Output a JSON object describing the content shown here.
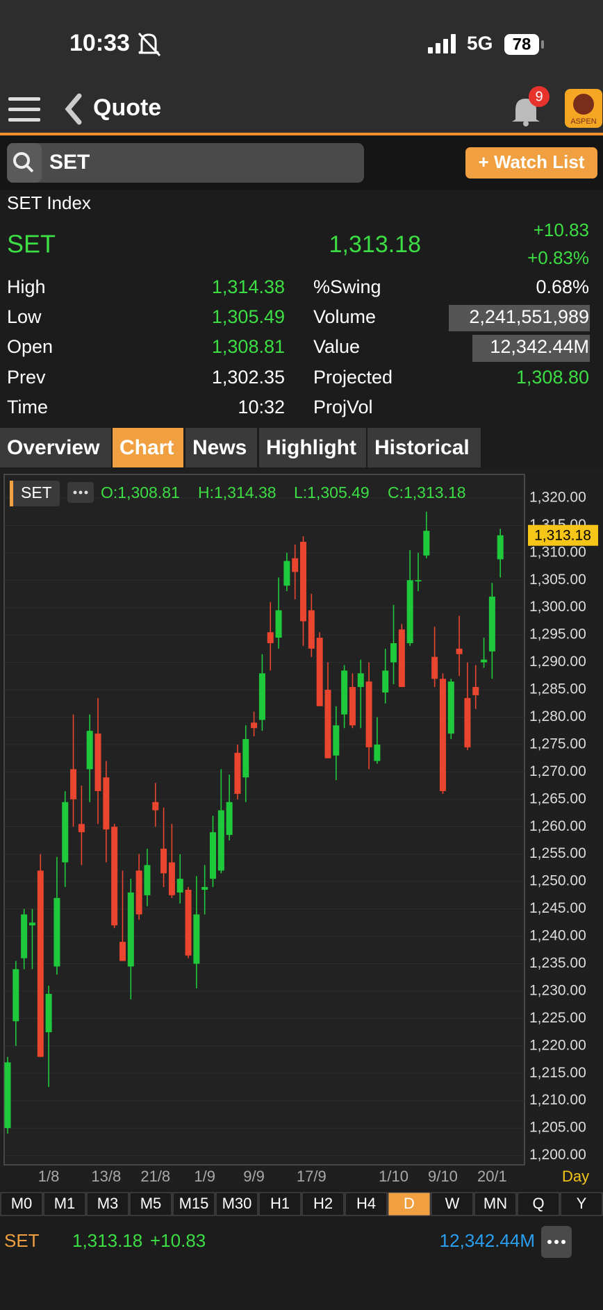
{
  "status_bar": {
    "time": "10:33",
    "network": "5G",
    "battery": "78"
  },
  "header": {
    "title": "Quote",
    "badge": "9",
    "logo": "ASPEN"
  },
  "search": {
    "query": "SET",
    "button": "+ Watch List"
  },
  "quote": {
    "name": "SET Index",
    "symbol": "SET",
    "price": "1,313.18",
    "change": "+10.83",
    "change_pct": "+0.83%",
    "stats": [
      [
        "High",
        "1,314.38",
        "%Swing",
        "0.68%"
      ],
      [
        "Low",
        "1,305.49",
        "Volume",
        "2,241,551,989"
      ],
      [
        "Open",
        "1,308.81",
        "Value",
        "12,342.44M"
      ],
      [
        "Prev",
        "1,302.35",
        "Projected",
        "1,308.80"
      ],
      [
        "Time",
        "10:32",
        "ProjVol"
      ]
    ]
  },
  "tabs": [
    {
      "label": "Overview"
    },
    {
      "label": "Chart",
      "active": true
    },
    {
      "label": "News"
    },
    {
      "label": "Highlight"
    },
    {
      "label": "Historical"
    }
  ],
  "chart_data": {
    "type": "candlestick",
    "legend": {
      "symbol": "SET",
      "ohlc": [
        "O:1,308.81",
        "H:1,314.38",
        "L:1,305.49",
        "C:1,313.18"
      ]
    },
    "categories": [
      null,
      null,
      null,
      null,
      null,
      "1/8",
      null,
      null,
      null,
      null,
      null,
      null,
      "13/8",
      null,
      null,
      null,
      null,
      null,
      "21/8",
      null,
      null,
      null,
      null,
      null,
      "1/9",
      null,
      null,
      null,
      null,
      null,
      "9/9",
      null,
      null,
      null,
      null,
      null,
      null,
      "17/9",
      null,
      null,
      null,
      null,
      null,
      null,
      null,
      null,
      null,
      "1/10",
      null,
      null,
      null,
      null,
      null,
      "9/10",
      null,
      null,
      null,
      null,
      null,
      "20/1",
      null
    ],
    "open": [
      1205,
      1224.5,
      1236,
      1242,
      1252,
      1222.5,
      1234.5,
      1253.5,
      1270.5,
      1260.5,
      1270.5,
      1277,
      1269,
      1260,
      1239,
      1234.5,
      1252,
      1247.5,
      1264.5,
      1256,
      1253.5,
      1248,
      1248.5,
      1235,
      1248.5,
      1250.5,
      1252,
      1258.5,
      1273.5,
      1269,
      1279,
      1279.5,
      1295.5,
      1294.5,
      1304,
      1309,
      1312,
      1299.5,
      1294.5,
      1285,
      1273,
      1280.5,
      1285.5,
      1285.5,
      1286.5,
      1272,
      1284.5,
      1290,
      1296,
      1293.5,
      1305,
      1309.5,
      1291,
      1287,
      1277,
      1292.5,
      1283.5,
      1285.5,
      1290,
      1292,
      1308.81
    ],
    "high": [
      1218,
      1235.5,
      1245,
      1245,
      1255,
      1231,
      1254.5,
      1266.5,
      1280.5,
      1267.5,
      1280.5,
      1283.5,
      1272,
      1260.5,
      1252,
      1250.5,
      1255,
      1256,
      1268,
      1263.5,
      1260.5,
      1255,
      1249,
      1251,
      1253,
      1262,
      1270.5,
      1269.5,
      1275,
      1278.5,
      1281,
      1291.5,
      1301,
      1305.5,
      1310,
      1311.5,
      1313,
      1302.5,
      1295.5,
      1290,
      1282,
      1289.5,
      1288,
      1290.5,
      1290,
      1280,
      1292.5,
      1300.5,
      1297,
      1310.5,
      1310,
      1317.5,
      1296.5,
      1288,
      1287,
      1298.5,
      1290,
      1289.5,
      1294.5,
      1304.5,
      1314.38
    ],
    "low": [
      1204,
      1220,
      1234,
      1234,
      1218,
      1212.5,
      1233,
      1249,
      1260,
      1253,
      1264.5,
      1260.5,
      1253.5,
      1241.5,
      1235.5,
      1228.5,
      1243,
      1245.5,
      1260,
      1249,
      1247,
      1246,
      1236,
      1230.5,
      1244,
      1249,
      1251.5,
      1257.5,
      1265,
      1264.5,
      1276.5,
      1277.5,
      1288.5,
      1292.5,
      1303,
      1301.5,
      1293,
      1291,
      1282,
      1272.5,
      1268.5,
      1278,
      1278,
      1278,
      1270.5,
      1271.5,
      1282.5,
      1286,
      1285.5,
      1293,
      1303,
      1309,
      1285.5,
      1266,
      1276,
      1287.5,
      1274,
      1281.5,
      1289,
      1287,
      1305.49
    ],
    "close": [
      1217,
      1234,
      1244,
      1242.5,
      1218,
      1229.5,
      1247,
      1264.5,
      1265,
      1259,
      1277.5,
      1266.5,
      1259.5,
      1242,
      1235.5,
      1248,
      1244,
      1253,
      1263,
      1251.5,
      1247.5,
      1250.5,
      1236.5,
      1244,
      1249,
      1259,
      1263,
      1264.5,
      1266,
      1276,
      1278,
      1288,
      1293.5,
      1299.5,
      1308.5,
      1306.5,
      1297.5,
      1292.5,
      1282,
      1272.5,
      1278.5,
      1288.5,
      1278.5,
      1288,
      1274.5,
      1275,
      1288.5,
      1293.5,
      1285.5,
      1305,
      1305,
      1314,
      1287,
      1266.5,
      1286.5,
      1291.5,
      1274.5,
      1284,
      1290.5,
      1302,
      1313.18
    ],
    "up_color": "#1fc93c",
    "down_color": "#e9452f",
    "ylim": [
      1198.3,
      1324.3
    ],
    "yticks": [
      {
        "value": 1200,
        "label": "1,200.00"
      },
      {
        "value": 1205,
        "label": "1,205.00"
      },
      {
        "value": 1210,
        "label": "1,210.00"
      },
      {
        "value": 1215,
        "label": "1,215.00"
      },
      {
        "value": 1220,
        "label": "1,220.00"
      },
      {
        "value": 1225,
        "label": "1,225.00"
      },
      {
        "value": 1230,
        "label": "1,230.00"
      },
      {
        "value": 1235,
        "label": "1,235.00"
      },
      {
        "value": 1240,
        "label": "1,240.00"
      },
      {
        "value": 1245,
        "label": "1,245.00"
      },
      {
        "value": 1250,
        "label": "1,250.00"
      },
      {
        "value": 1255,
        "label": "1,255.00"
      },
      {
        "value": 1260,
        "label": "1,260.00"
      },
      {
        "value": 1265,
        "label": "1,265.00"
      },
      {
        "value": 1270,
        "label": "1,270.00"
      },
      {
        "value": 1275,
        "label": "1,275.00"
      },
      {
        "value": 1280,
        "label": "1,280.00"
      },
      {
        "value": 1285,
        "label": "1,285.00"
      },
      {
        "value": 1290,
        "label": "1,290.00"
      },
      {
        "value": 1295,
        "label": "1,295.00"
      },
      {
        "value": 1300,
        "label": "1,300.00"
      },
      {
        "value": 1305,
        "label": "1,305.00"
      },
      {
        "value": 1310,
        "label": "1,310.00"
      },
      {
        "value": 1315,
        "label": "1,315.00"
      },
      {
        "value": 1320,
        "label": "1,320.00"
      }
    ],
    "grid": true,
    "last_price": {
      "value": 1313.18,
      "label": "1,313.18"
    },
    "interval": "Day"
  },
  "periods": [
    {
      "label": "M0"
    },
    {
      "label": "M1"
    },
    {
      "label": "M3"
    },
    {
      "label": "M5"
    },
    {
      "label": "M15"
    },
    {
      "label": "M30"
    },
    {
      "label": "H1"
    },
    {
      "label": "H2"
    },
    {
      "label": "H4"
    },
    {
      "label": "D",
      "active": true
    },
    {
      "label": "W"
    },
    {
      "label": "MN"
    },
    {
      "label": "Q"
    },
    {
      "label": "Y"
    }
  ],
  "footer": {
    "symbol": "SET",
    "price": "1,313.18",
    "change": "+10.83",
    "value": "12,342.44M"
  }
}
